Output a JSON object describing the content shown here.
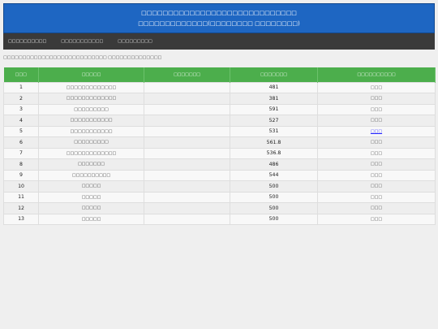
{
  "banner": {
    "line1": "□□□□□□□□□□□□□□□□□□□□□□□□□□□□□",
    "line2": "□□□□□□□□□□□□□(□□□□□□□□ □□□□□□□□)"
  },
  "nav": {
    "items": [
      {
        "label": "□□□□□□□□□□"
      },
      {
        "label": "□□□□□□□□□□□"
      },
      {
        "label": "□□□□□□□□□"
      }
    ]
  },
  "notice": "□□□□□□□□□□□□□□□□□□□□□□□□□□□ □□□□□□□□□□□□□□",
  "table": {
    "headers": [
      "□□□",
      "□□□□□",
      "□□□□□□□",
      "□□□□□□□",
      "□□□□□□□□□□"
    ],
    "rows": [
      {
        "no": "1",
        "name": "□□□□□□□□□□□□□",
        "spec": "",
        "price": "481",
        "action": "□□□"
      },
      {
        "no": "2",
        "name": "□□□□□□□□□□□□□",
        "spec": "",
        "price": "381",
        "action": "□□□"
      },
      {
        "no": "3",
        "name": "□□□□□□□□□",
        "spec": "",
        "price": "591",
        "action": "□□□"
      },
      {
        "no": "4",
        "name": "□□□□□□□□□□□",
        "spec": "",
        "price": "527",
        "action": "□□□"
      },
      {
        "no": "5",
        "name": "□□□□□□□□□□□",
        "spec": "",
        "price": "531",
        "action": "□□□",
        "link": true
      },
      {
        "no": "6",
        "name": "□□□□□□□□□",
        "spec": "",
        "price": "561.8",
        "action": "□□□"
      },
      {
        "no": "7",
        "name": "□□□□□□□□□□□□□",
        "spec": "",
        "price": "536.8",
        "action": "□□□"
      },
      {
        "no": "8",
        "name": "□□□□□□□",
        "spec": "",
        "price": "486",
        "action": "□□□"
      },
      {
        "no": "9",
        "name": "□□□□□□□□□□",
        "spec": "",
        "price": "544",
        "action": "□□□"
      },
      {
        "no": "10",
        "name": "□□□□□",
        "spec": "",
        "price": "500",
        "action": "□□□"
      },
      {
        "no": "11",
        "name": "□□□□□",
        "spec": "",
        "price": "500",
        "action": "□□□"
      },
      {
        "no": "12",
        "name": "□□□□□",
        "spec": "",
        "price": "500",
        "action": "□□□"
      },
      {
        "no": "13",
        "name": "□□□□□",
        "spec": "",
        "price": "500",
        "action": "□□□"
      }
    ]
  },
  "colors": {
    "banner": "#1e66c2",
    "navbar": "#3a3a3a",
    "table_header": "#4cae4c",
    "link": "#2a2aff"
  }
}
